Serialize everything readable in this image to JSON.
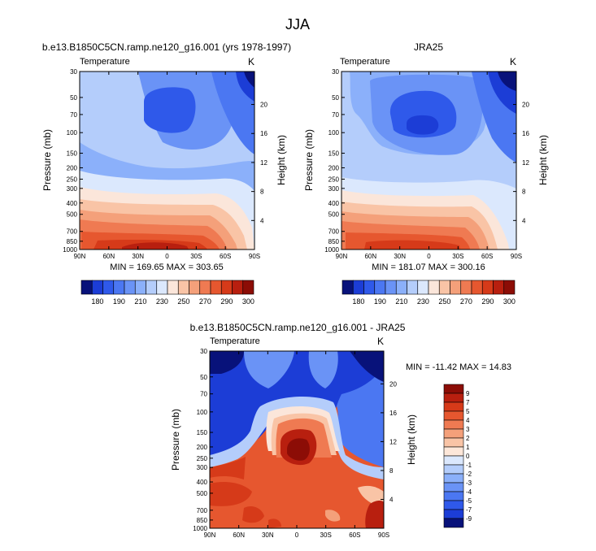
{
  "figure": {
    "title": "JJA"
  },
  "colors": {
    "temperature_palette": [
      "#08127a",
      "#1c3dd6",
      "#2f59ea",
      "#4b77f2",
      "#6a93f6",
      "#8bb0fa",
      "#b4cdfb",
      "#dbe8fd",
      "#fbe6da",
      "#f9c4a6",
      "#f4a07a",
      "#ef7a52",
      "#e6572f",
      "#d63a19",
      "#b81f0f",
      "#8c0d06"
    ],
    "difference_palette": [
      "#08127a",
      "#1c3dd6",
      "#2f59ea",
      "#4b77f2",
      "#6a93f6",
      "#8bb0fa",
      "#b4cdfb",
      "#dbe8fd",
      "#fde7d9",
      "#f9c4a6",
      "#f4a07a",
      "#ef7a52",
      "#e6572f",
      "#d63a19",
      "#b81f0f",
      "#8c0d06"
    ]
  },
  "chart_data": [
    {
      "type": "heatmap",
      "title": "b.e13.B1850C5CN.ramp.ne120_g16.001 (yrs 1978-1997)",
      "subtitle_left": "Temperature",
      "units": "K",
      "ylabel": "Pressure (mb)",
      "ylabel_right": "Height (km)",
      "x_ticks": [
        "90N",
        "60N",
        "30N",
        "0",
        "30S",
        "60S",
        "90S"
      ],
      "y_ticks": [
        "30",
        "50",
        "70",
        "100",
        "150",
        "200",
        "250",
        "300",
        "400",
        "500",
        "700",
        "850",
        "1000"
      ],
      "height_ticks": [
        "20",
        "16",
        "12",
        "8",
        "4"
      ],
      "stats": "MIN = 169.65   MAX = 303.65",
      "colorbar_labels": [
        "180",
        "190",
        "210",
        "230",
        "250",
        "270",
        "290",
        "300"
      ]
    },
    {
      "type": "heatmap",
      "title": "JRA25",
      "subtitle_left": "Temperature",
      "units": "K",
      "ylabel": "Pressure (mb)",
      "ylabel_right": "Height (km)",
      "x_ticks": [
        "90N",
        "60N",
        "30N",
        "0",
        "30S",
        "60S",
        "90S"
      ],
      "y_ticks": [
        "30",
        "50",
        "70",
        "100",
        "150",
        "200",
        "250",
        "300",
        "400",
        "500",
        "700",
        "850",
        "1000"
      ],
      "height_ticks": [
        "20",
        "16",
        "12",
        "8",
        "4"
      ],
      "stats": "MIN = 181.07   MAX = 300.16",
      "colorbar_labels": [
        "180",
        "190",
        "210",
        "230",
        "250",
        "270",
        "290",
        "300"
      ]
    },
    {
      "type": "heatmap",
      "title": "b.e13.B1850C5CN.ramp.ne120_g16.001 - JRA25",
      "subtitle_left": "Temperature",
      "units": "K",
      "ylabel": "Pressure (mb)",
      "ylabel_right": "Height (km)",
      "x_ticks": [
        "90N",
        "60N",
        "30N",
        "0",
        "30S",
        "60S",
        "90S"
      ],
      "y_ticks": [
        "30",
        "50",
        "70",
        "100",
        "150",
        "200",
        "250",
        "300",
        "400",
        "500",
        "700",
        "850",
        "1000"
      ],
      "height_ticks": [
        "20",
        "16",
        "12",
        "8",
        "4"
      ],
      "stats": "MIN = -11.42   MAX =  14.83",
      "colorbar_labels": [
        "9",
        "7",
        "5",
        "4",
        "3",
        "2",
        "1",
        "0",
        "-1",
        "-2",
        "-3",
        "-4",
        "-5",
        "-7",
        "-9"
      ]
    }
  ]
}
